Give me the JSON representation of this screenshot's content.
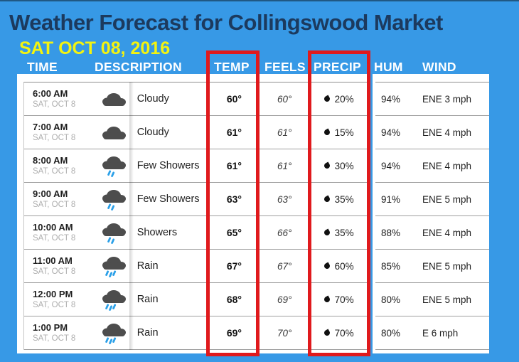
{
  "title": "Weather Forecast for Collingswood Market",
  "date": "SAT OCT 08, 2016",
  "colors": {
    "background": "#3799e6",
    "title_text": "#1c3a5e",
    "date_text": "#f3f310",
    "annotation_red": "#e01a1d",
    "cloud_gray": "#4d4d4d",
    "rain_blue": "#2ba0e8"
  },
  "columns": {
    "time": "TIME",
    "description": "DESCRIPTION",
    "temp": "TEMP",
    "feels": "FEELS",
    "precip": "PRECIP",
    "hum": "HUM",
    "wind": "WIND"
  },
  "highlighted_columns": [
    "TEMP",
    "PRECIP"
  ],
  "rows": [
    {
      "time": "6:00 AM",
      "date": "SAT, OCT 8",
      "icon": "cloudy",
      "description": "Cloudy",
      "temp": "60°",
      "feels": "60°",
      "precip": "20%",
      "hum": "94%",
      "wind": "ENE 3 mph"
    },
    {
      "time": "7:00 AM",
      "date": "SAT, OCT 8",
      "icon": "cloudy",
      "description": "Cloudy",
      "temp": "61°",
      "feels": "61°",
      "precip": "15%",
      "hum": "94%",
      "wind": "ENE 4 mph"
    },
    {
      "time": "8:00 AM",
      "date": "SAT, OCT 8",
      "icon": "few-showers",
      "description": "Few Showers",
      "temp": "61°",
      "feels": "61°",
      "precip": "30%",
      "hum": "94%",
      "wind": "ENE 4 mph"
    },
    {
      "time": "9:00 AM",
      "date": "SAT, OCT 8",
      "icon": "few-showers",
      "description": "Few Showers",
      "temp": "63°",
      "feels": "63°",
      "precip": "35%",
      "hum": "91%",
      "wind": "ENE 5 mph"
    },
    {
      "time": "10:00 AM",
      "date": "SAT, OCT 8",
      "icon": "showers",
      "description": "Showers",
      "temp": "65°",
      "feels": "66°",
      "precip": "35%",
      "hum": "88%",
      "wind": "ENE 4 mph"
    },
    {
      "time": "11:00 AM",
      "date": "SAT, OCT 8",
      "icon": "rain",
      "description": "Rain",
      "temp": "67°",
      "feels": "67°",
      "precip": "60%",
      "hum": "85%",
      "wind": "ENE 5 mph"
    },
    {
      "time": "12:00 PM",
      "date": "SAT, OCT 8",
      "icon": "rain",
      "description": "Rain",
      "temp": "68°",
      "feels": "69°",
      "precip": "70%",
      "hum": "80%",
      "wind": "ENE 5 mph"
    },
    {
      "time": "1:00 PM",
      "date": "SAT, OCT 8",
      "icon": "rain",
      "description": "Rain",
      "temp": "69°",
      "feels": "70°",
      "precip": "70%",
      "hum": "80%",
      "wind": "E 6 mph"
    }
  ]
}
